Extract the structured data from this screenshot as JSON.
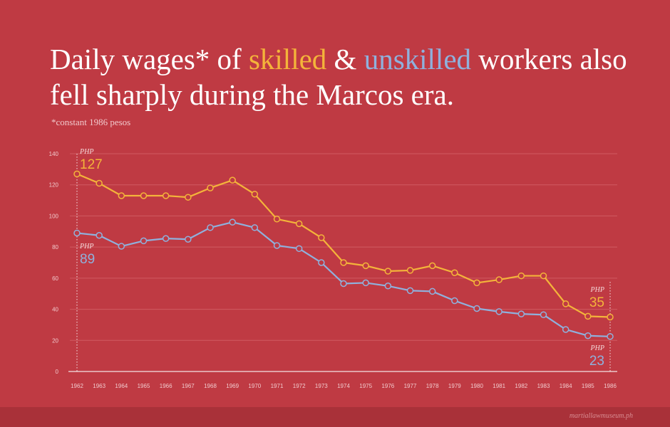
{
  "title": {
    "part1": "Daily wages* of ",
    "skilled": "skilled",
    "part2": " & ",
    "unskilled": "unskilled",
    "part3": " workers also fell sharply during the Marcos era."
  },
  "note": "*constant 1986 pesos",
  "credit": "martiallawmuseum.ph",
  "colors": {
    "background": "#bf3a43",
    "skilled": "#f4b43a",
    "unskilled": "#8fb1dd",
    "grid": "#d05a62",
    "axis_text": "#f1c9cc"
  },
  "chart_data": {
    "type": "line",
    "x": [
      "1962",
      "1963",
      "1964",
      "1965",
      "1966",
      "1967",
      "1968",
      "1969",
      "1970",
      "1971",
      "1972",
      "1973",
      "1974",
      "1975",
      "1976",
      "1977",
      "1978",
      "1979",
      "1980",
      "1981",
      "1982",
      "1983",
      "1984",
      "1985",
      "1986"
    ],
    "ylim": [
      0,
      140
    ],
    "yticks": [
      0,
      20,
      40,
      60,
      80,
      100,
      120,
      140
    ],
    "grid": true,
    "series": [
      {
        "name": "skilled",
        "color": "#f4b43a",
        "values": [
          127,
          121,
          113,
          113,
          113,
          112,
          118,
          123,
          114,
          98,
          95,
          86,
          70,
          68,
          64.5,
          65,
          68,
          63.5,
          57,
          59,
          61.5,
          61.5,
          43.5,
          35.5,
          35
        ]
      },
      {
        "name": "unskilled",
        "color": "#8fb1dd",
        "values": [
          89,
          87.5,
          80.5,
          84,
          85.5,
          85,
          92.5,
          96,
          92.5,
          81,
          79,
          70,
          56.5,
          57,
          55,
          52,
          51.5,
          45.5,
          40.5,
          38.5,
          37,
          36.5,
          27,
          23,
          22.5
        ]
      }
    ],
    "annotations": [
      {
        "series": "skilled",
        "year": "1962",
        "currency": "PHP",
        "value": "127"
      },
      {
        "series": "unskilled",
        "year": "1962",
        "currency": "PHP",
        "value": "89"
      },
      {
        "series": "skilled",
        "year": "1986",
        "currency": "PHP",
        "value": "35"
      },
      {
        "series": "unskilled",
        "year": "1986",
        "currency": "PHP",
        "value": "23"
      }
    ]
  }
}
